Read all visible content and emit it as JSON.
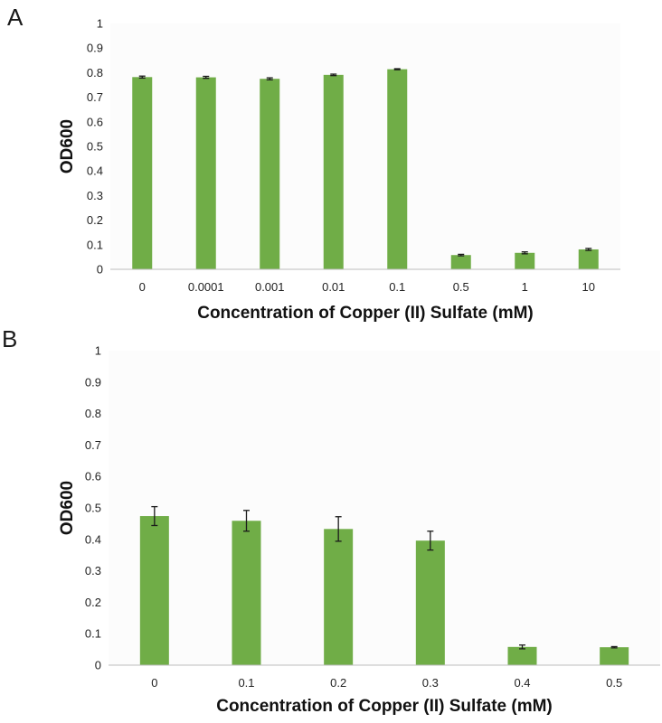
{
  "panels": [
    {
      "letter": "A",
      "chart_data": {
        "type": "bar",
        "categories": [
          "0",
          "0.0001",
          "0.001",
          "0.01",
          "0.1",
          "0.5",
          "1",
          "10"
        ],
        "values": [
          0.782,
          0.781,
          0.775,
          0.791,
          0.814,
          0.058,
          0.067,
          0.081
        ],
        "errors": [
          0.004,
          0.004,
          0.004,
          0.003,
          0.002,
          0.003,
          0.004,
          0.004
        ],
        "xlabel": "Concentration of Copper (II) Sulfate (mM)",
        "ylabel": "OD600",
        "ylim": [
          0,
          1
        ],
        "yticks": [
          "0",
          "0.1",
          "0.2",
          "0.3",
          "0.4",
          "0.5",
          "0.6",
          "0.7",
          "0.8",
          "0.9",
          "1"
        ],
        "grid": false,
        "bar_color": "#70ad47"
      }
    },
    {
      "letter": "B",
      "chart_data": {
        "type": "bar",
        "categories": [
          "0",
          "0.1",
          "0.2",
          "0.3",
          "0.4",
          "0.5"
        ],
        "values": [
          0.474,
          0.459,
          0.433,
          0.396,
          0.058,
          0.057
        ],
        "errors": [
          0.03,
          0.033,
          0.039,
          0.03,
          0.006,
          0.002
        ],
        "xlabel": "Concentration of Copper (II) Sulfate (mM)",
        "ylabel": "OD600",
        "ylim": [
          0,
          1
        ],
        "yticks": [
          "0",
          "0.1",
          "0.2",
          "0.3",
          "0.4",
          "0.5",
          "0.6",
          "0.7",
          "0.8",
          "0.9",
          "1"
        ],
        "grid": false,
        "bar_color": "#70ad47"
      }
    }
  ]
}
